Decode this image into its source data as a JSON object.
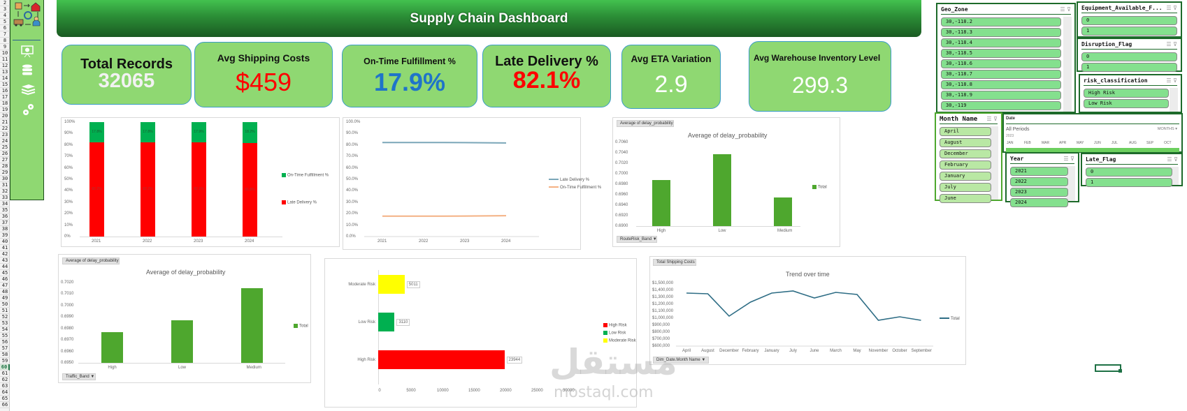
{
  "header": {
    "title": "Supply Chain Dashboard"
  },
  "row_numbers": [
    "2",
    "3",
    "4",
    "5",
    "6",
    "7",
    "8",
    "9",
    "10",
    "11",
    "12",
    "13",
    "14",
    "15",
    "16",
    "17",
    "18",
    "19",
    "20",
    "21",
    "22",
    "23",
    "24",
    "25",
    "26",
    "27",
    "28",
    "29",
    "30",
    "31",
    "32",
    "33",
    "34",
    "35",
    "36",
    "37",
    "38",
    "39",
    "40",
    "41",
    "42",
    "43",
    "44",
    "45",
    "46",
    "47",
    "48",
    "49",
    "50",
    "51",
    "52",
    "53",
    "54",
    "55",
    "56",
    "57",
    "58",
    "59",
    "60",
    "61",
    "62",
    "63",
    "64",
    "65",
    "66"
  ],
  "selected_row": "60",
  "sidebar": {
    "icons": [
      "supply-chain-logo-icon",
      "presentation-chart-icon",
      "database-icon",
      "books-icon",
      "gears-icon"
    ]
  },
  "kpis": {
    "total_records": {
      "label": "Total Records",
      "value": "32065",
      "color": "#f2f2f2"
    },
    "avg_shipping": {
      "label": "Avg Shipping Costs",
      "value": "$459",
      "color": "#ff0000"
    },
    "on_time": {
      "label": "On-Time Fulfillment %",
      "value": "17.9%",
      "color": "#1f74c9"
    },
    "late_delivery": {
      "label": "Late Delivery %",
      "value": "82.1%",
      "color": "#ff0000"
    },
    "eta_variation": {
      "label": "Avg ETA Variation",
      "value": "2.9",
      "color": "#ffffff"
    },
    "warehouse_inventory": {
      "label": "Avg Warehouse Inventory Level",
      "value": "299.3",
      "color": "#ffffff"
    }
  },
  "charts": {
    "stacked": {
      "y_ticks": [
        "100%",
        "90%",
        "80%",
        "70%",
        "60%",
        "50%",
        "40%",
        "30%",
        "20%",
        "10%",
        "0%"
      ],
      "legend": [
        "On-Time Fulfillment %",
        "Late Delivery %"
      ]
    },
    "line_pct": {
      "y_ticks": [
        "100.0%",
        "90.0%",
        "80.0%",
        "70.0%",
        "60.0%",
        "50.0%",
        "40.0%",
        "30.0%",
        "20.0%",
        "10.0%",
        "0.0%"
      ],
      "legend": [
        "Late Delivery %",
        "On-Time Fulfillment %"
      ]
    },
    "route_risk": {
      "pill": "Average of delay_probability",
      "title": "Average of delay_probability",
      "y_ticks": [
        "0.7060",
        "0.7040",
        "0.7020",
        "0.7000",
        "0.6980",
        "0.6960",
        "0.6940",
        "0.6920",
        "0.6900"
      ],
      "legend": "Total",
      "filter": "RouteRisk_Band"
    },
    "traffic": {
      "pill": "Average of delay_probability",
      "title": "Average of delay_probability",
      "y_ticks": [
        "0.7020",
        "0.7010",
        "0.7000",
        "0.6990",
        "0.6980",
        "0.6970",
        "0.6960",
        "0.6950"
      ],
      "legend": "Total",
      "filter": "Traffic_Band"
    },
    "risk_bar": {
      "x_ticks": [
        "0",
        "5000",
        "10000",
        "15000",
        "20000",
        "25000",
        "30000"
      ],
      "legend": [
        "High Risk",
        "Low Risk",
        "Moderate Risk"
      ]
    },
    "trend": {
      "pill": "Total Shipping Costs",
      "title": "Trend over time",
      "y_ticks": [
        "$1,500,000",
        "$1,400,000",
        "$1,300,000",
        "$1,200,000",
        "$1,100,000",
        "$1,000,000",
        "$900,000",
        "$800,000",
        "$700,000",
        "$600,000"
      ],
      "legend": "Total",
      "filter": "Dim_Date.Month Name"
    }
  },
  "chart_data": [
    {
      "type": "bar",
      "stacked": true,
      "title": "",
      "categories": [
        "2021",
        "2022",
        "2023",
        "2024"
      ],
      "series": [
        {
          "name": "Late Delivery %",
          "values": [
            82.2,
            82.2,
            82.1,
            81.8
          ],
          "labels": [
            "82.2%",
            "82.2%",
            "82.1%",
            "81.8%"
          ],
          "color": "#ff0000"
        },
        {
          "name": "On-Time Fulfillment %",
          "values": [
            17.8,
            17.8,
            17.9,
            18.2
          ],
          "labels": [
            "17.8%",
            "17.8%",
            "17.9%",
            "18.2%"
          ],
          "color": "#00b050"
        }
      ],
      "ylim": [
        0,
        100
      ],
      "ylabel": "",
      "xlabel": "",
      "legend_position": "right"
    },
    {
      "type": "line",
      "title": "",
      "categories": [
        "2021",
        "2022",
        "2023",
        "2024"
      ],
      "series": [
        {
          "name": "Late Delivery %",
          "values": [
            82.2,
            82.2,
            82.1,
            81.8
          ],
          "color": "#7aa6b8"
        },
        {
          "name": "On-Time Fulfillment %",
          "values": [
            17.8,
            17.8,
            17.9,
            18.2
          ],
          "color": "#f4b183"
        }
      ],
      "ylim": [
        0,
        100
      ],
      "legend_position": "right"
    },
    {
      "type": "bar",
      "title": "Average of delay_probability",
      "categories": [
        "High",
        "Low",
        "Medium"
      ],
      "series": [
        {
          "name": "Total",
          "values": [
            0.6988,
            0.7038,
            0.6955
          ],
          "color": "#4ea72e"
        }
      ],
      "ylim": [
        0.69,
        0.706
      ],
      "xlabel": "RouteRisk_Band",
      "legend_position": "right"
    },
    {
      "type": "bar",
      "title": "Average of delay_probability",
      "categories": [
        "High",
        "Low",
        "Medium"
      ],
      "series": [
        {
          "name": "Total",
          "values": [
            0.6977,
            0.6987,
            0.7015
          ],
          "color": "#4ea72e"
        }
      ],
      "ylim": [
        0.695,
        0.702
      ],
      "xlabel": "Traffic_Band",
      "legend_position": "right"
    },
    {
      "type": "bar",
      "orientation": "horizontal",
      "title": "",
      "categories": [
        "High Risk",
        "Low Risk",
        "Moderate Risk"
      ],
      "series": [
        {
          "name": "Count",
          "values": [
            23944,
            3110,
            5011
          ],
          "colors": [
            "#ff0000",
            "#00b050",
            "#ffff00"
          ]
        }
      ],
      "xlim": [
        0,
        30000
      ],
      "legend_position": "right"
    },
    {
      "type": "line",
      "title": "Trend over time",
      "categories": [
        "April",
        "August",
        "December",
        "February",
        "January",
        "July",
        "June",
        "March",
        "May",
        "November",
        "October",
        "September"
      ],
      "series": [
        {
          "name": "Total",
          "values": [
            1360000,
            1350000,
            1030000,
            1230000,
            1360000,
            1390000,
            1290000,
            1370000,
            1340000,
            970000,
            1020000,
            970000
          ],
          "color": "#2e6d85"
        }
      ],
      "ylim": [
        600000,
        1500000
      ],
      "ylabel": "Total Shipping Costs",
      "xlabel": "Dim_Date.Month Name",
      "legend_position": "right"
    }
  ],
  "slicers": {
    "geo_zone": {
      "title": "Geo_Zone",
      "items": [
        "30,-118.2",
        "30,-118.3",
        "30,-118.4",
        "30,-118.5",
        "30,-118.6",
        "30,-118.7",
        "30,-118.8",
        "30,-118.9",
        "30,-119"
      ]
    },
    "equipment": {
      "title": "Equipment_Available_F...",
      "items": [
        "0",
        "1"
      ]
    },
    "disruption": {
      "title": "Disruption_Flag",
      "items": [
        "0",
        "1"
      ]
    },
    "risk": {
      "title": "risk_classification",
      "items": [
        "High Risk",
        "Low Risk"
      ]
    },
    "month": {
      "title": "Month Name",
      "items": [
        "April",
        "August",
        "December",
        "February",
        "January",
        "July",
        "June"
      ]
    },
    "date": {
      "title": "Date",
      "period": "All Periods",
      "unit": "MONTHS",
      "year": "2023",
      "months": [
        "JAN",
        "FEB",
        "MAR",
        "APR",
        "MAY",
        "JUN",
        "JUL",
        "AUG",
        "SEP",
        "OCT"
      ]
    },
    "year": {
      "title": "Year",
      "items": [
        "2021",
        "2022",
        "2023",
        "2024"
      ]
    },
    "late_flag": {
      "title": "Late_Flag",
      "items": [
        "0",
        "1"
      ]
    }
  },
  "watermark": {
    "arabic": "مستقل",
    "latin": "mostaql.com"
  }
}
